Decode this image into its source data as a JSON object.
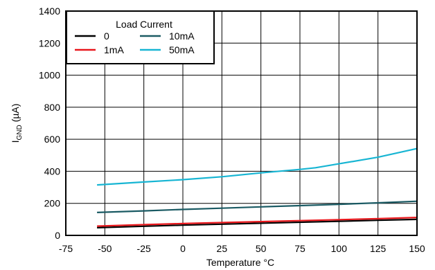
{
  "chart_data": {
    "type": "line",
    "xlabel": "Temperature °C",
    "ylabel_main": "I",
    "ylabel_sub": "GND",
    "ylabel_unit": " (µA)",
    "xlim": [
      -75,
      150
    ],
    "ylim": [
      0,
      1400
    ],
    "xticks": [
      -75,
      -50,
      -25,
      0,
      25,
      50,
      75,
      100,
      125,
      150
    ],
    "yticks": [
      0,
      200,
      400,
      600,
      800,
      1000,
      1200,
      1400
    ],
    "grid": true,
    "legend": {
      "title": "Load Current",
      "position": "top-left"
    },
    "series": [
      {
        "name": "0",
        "color": "#000000",
        "x": [
          -55,
          -25,
          0,
          25,
          50,
          75,
          100,
          125,
          150
        ],
        "values": [
          48,
          57,
          64,
          70,
          76,
          82,
          88,
          94,
          100
        ]
      },
      {
        "name": "1mA",
        "color": "#e8161b",
        "x": [
          -55,
          -25,
          0,
          25,
          50,
          75,
          100,
          125,
          150
        ],
        "values": [
          58,
          67,
          74,
          80,
          86,
          92,
          98,
          104,
          112
        ]
      },
      {
        "name": "10mA",
        "color": "#1a5a63",
        "x": [
          -55,
          -25,
          0,
          25,
          50,
          75,
          100,
          125,
          150
        ],
        "values": [
          143,
          153,
          162,
          170,
          178,
          186,
          194,
          203,
          213
        ]
      },
      {
        "name": "50mA",
        "color": "#17b5d3",
        "x": [
          -55,
          -25,
          0,
          25,
          50,
          75,
          85,
          100,
          125,
          150
        ],
        "values": [
          315,
          333,
          348,
          366,
          390,
          412,
          422,
          447,
          488,
          542
        ]
      }
    ]
  }
}
